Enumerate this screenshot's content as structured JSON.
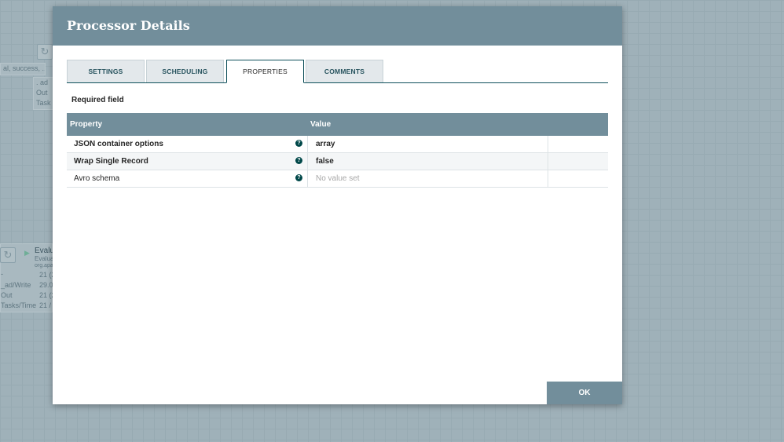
{
  "background": {
    "node1": {
      "relationships": "al, success, ...",
      "rows": [
        ". ad",
        "Out",
        "Task"
      ]
    },
    "node2": {
      "name": "Evalu",
      "type": "Evalua",
      "bundle": "org.apa",
      "labels": [
        "-",
        "_ad/Write",
        "Out",
        "Tasks/Time"
      ],
      "values": [
        "21 (2",
        "29.0",
        "21 (2",
        "21 /"
      ]
    }
  },
  "dialog": {
    "title": "Processor Details",
    "tabs": [
      {
        "label": "SETTINGS"
      },
      {
        "label": "SCHEDULING"
      },
      {
        "label": "PROPERTIES"
      },
      {
        "label": "COMMENTS"
      }
    ],
    "active_tab": "PROPERTIES",
    "required_label": "Required field",
    "table": {
      "headers": {
        "property": "Property",
        "value": "Value"
      },
      "rows": [
        {
          "property": "JSON container options",
          "value": "array",
          "required": true
        },
        {
          "property": "Wrap Single Record",
          "value": "false",
          "required": true
        },
        {
          "property": "Avro schema",
          "value": "No value set",
          "required": false
        }
      ]
    },
    "ok_label": "OK"
  },
  "colors": {
    "header": "#728e9b",
    "accent": "#004849"
  }
}
